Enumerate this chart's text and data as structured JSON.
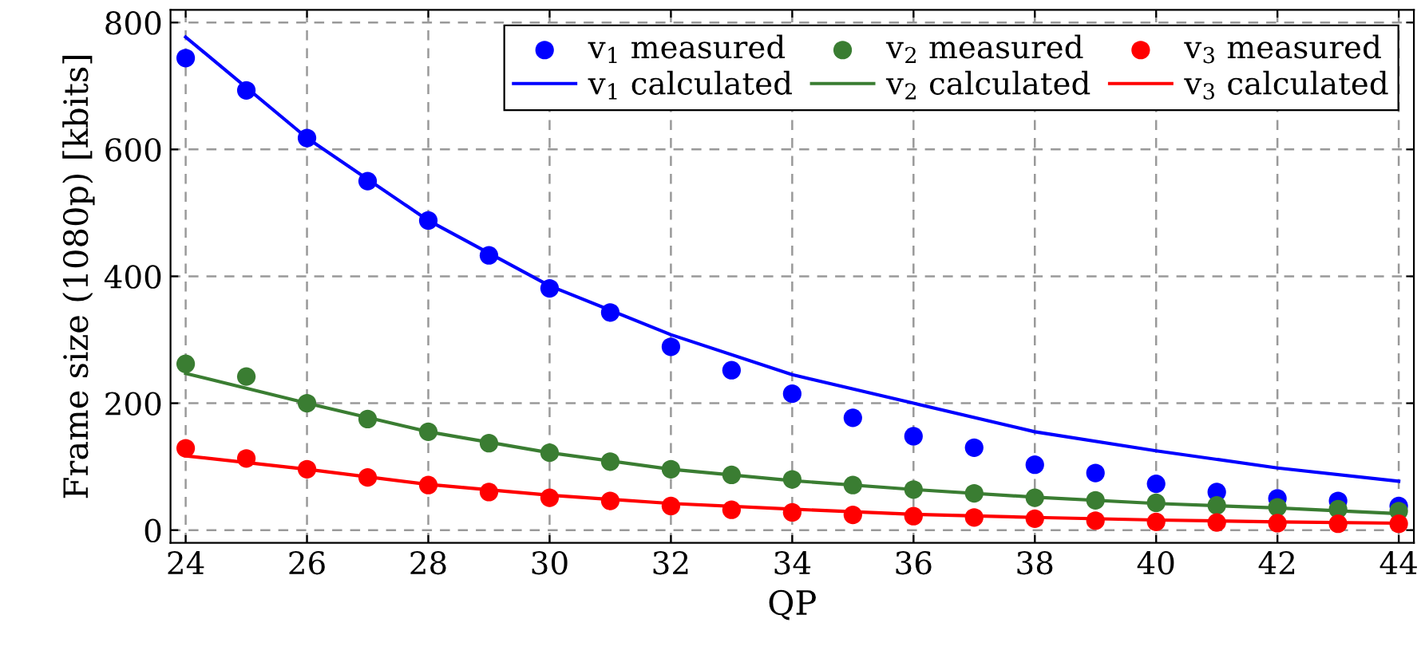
{
  "chart_data": {
    "type": "scatter",
    "xlabel": "QP",
    "ylabel": "Frame size (1080p) [kbits]",
    "xlim": [
      23.75,
      44.25
    ],
    "xticks": [
      24,
      26,
      28,
      30,
      32,
      34,
      36,
      38,
      40,
      42,
      44
    ],
    "ylim": [
      -20,
      820
    ],
    "yticks": [
      0,
      200,
      400,
      600,
      800
    ],
    "grid": true,
    "legend": "top right",
    "series": [
      {
        "name": "v$_{1}$ measured",
        "marker": "circle",
        "color": "#0000ff",
        "x": [
          24,
          25,
          26,
          27,
          28,
          29,
          30,
          31,
          32,
          33,
          34,
          35,
          36,
          37,
          38,
          39,
          40,
          41,
          42,
          43,
          44
        ],
        "values": [
          744,
          693,
          618,
          550,
          488,
          433,
          381,
          343,
          289,
          252,
          215,
          177,
          148,
          130,
          103,
          90,
          73,
          60,
          50,
          46,
          38
        ]
      },
      {
        "name": "v$_{1}$ calculated",
        "type": "line",
        "color": "#0000ff",
        "line_style": "solid",
        "x": [
          24,
          26,
          28,
          30,
          32,
          34,
          36,
          38,
          40,
          42,
          44
        ],
        "values": [
          777,
          618,
          488,
          385,
          308,
          245,
          200,
          155,
          125,
          98,
          77
        ]
      },
      {
        "name": "v$_{2}$ measured",
        "marker": "circle",
        "color": "#3a7d32",
        "x": [
          24,
          25,
          26,
          27,
          28,
          29,
          30,
          31,
          32,
          33,
          34,
          35,
          36,
          37,
          38,
          39,
          40,
          41,
          42,
          43,
          44
        ],
        "values": [
          262,
          242,
          200,
          175,
          155,
          137,
          122,
          108,
          96,
          87,
          80,
          71,
          64,
          58,
          51,
          47,
          43,
          39,
          36,
          33,
          30
        ]
      },
      {
        "name": "v$_{2}$ calculated",
        "type": "line",
        "color": "#3a7d32",
        "line_style": "solid",
        "x": [
          24,
          26,
          28,
          30,
          32,
          34,
          36,
          38,
          40,
          42,
          44
        ],
        "values": [
          247,
          200,
          155,
          122,
          96,
          78,
          64,
          52,
          42,
          35,
          26
        ]
      },
      {
        "name": "v$_{3}$ measured",
        "marker": "circle",
        "color": "#ff0000",
        "x": [
          24,
          25,
          26,
          27,
          28,
          29,
          30,
          31,
          32,
          33,
          34,
          35,
          36,
          37,
          38,
          39,
          40,
          41,
          42,
          43,
          44
        ],
        "values": [
          129,
          113,
          96,
          83,
          71,
          60,
          51,
          46,
          38,
          32,
          28,
          24,
          22,
          20,
          18,
          15,
          13,
          12,
          11,
          10,
          10
        ]
      },
      {
        "name": "v$_{3}$ calculated",
        "type": "line",
        "color": "#ff0000",
        "line_style": "solid",
        "x": [
          24,
          26,
          28,
          30,
          32,
          34,
          36,
          38,
          40,
          42,
          44
        ],
        "values": [
          117,
          96,
          72,
          55,
          42,
          33,
          25,
          20,
          16,
          13,
          11
        ]
      }
    ]
  }
}
